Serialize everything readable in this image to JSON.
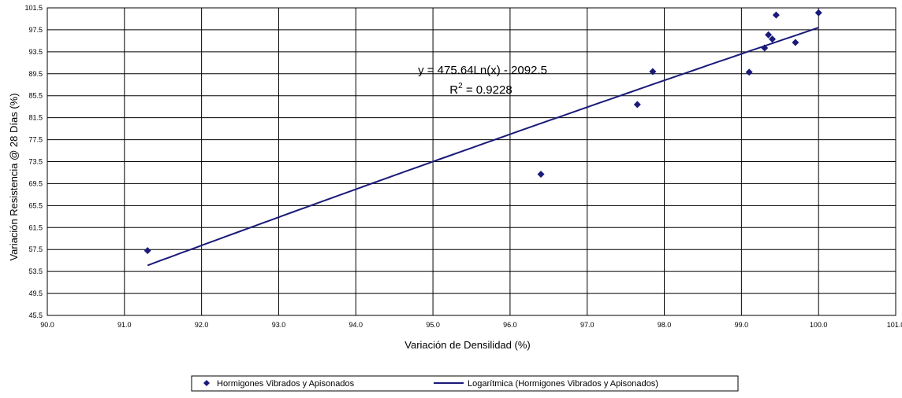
{
  "chart_data": {
    "type": "scatter",
    "title": "",
    "xlabel": "Variación de Densilidad (%)",
    "ylabel": "Variación Resistencia @ 28 Días (%)",
    "xlim": [
      90,
      101
    ],
    "ylim": [
      45.5,
      101.5
    ],
    "x_ticks": [
      "90.0",
      "91.0",
      "92.0",
      "93.0",
      "94.0",
      "95.0",
      "96.0",
      "97.0",
      "98.0",
      "99.0",
      "100.0",
      "101.0"
    ],
    "y_ticks": [
      "101.5",
      "97.5",
      "93.5",
      "89.5",
      "85.5",
      "81.5",
      "77.5",
      "73.5",
      "69.5",
      "65.5",
      "61.5",
      "57.5",
      "53.5",
      "49.5",
      "45.5"
    ],
    "grid": true,
    "series": [
      {
        "name": "Hormigones Vibrados y Apisonados",
        "kind": "scatter",
        "color": "#1a1a7a",
        "points": [
          [
            91.3,
            57.3
          ],
          [
            96.4,
            71.2
          ],
          [
            97.65,
            83.9
          ],
          [
            97.85,
            89.9
          ],
          [
            99.1,
            89.8
          ],
          [
            99.3,
            94.2
          ],
          [
            99.35,
            96.6
          ],
          [
            99.4,
            95.8
          ],
          [
            99.45,
            100.2
          ],
          [
            99.7,
            95.2
          ],
          [
            100.0,
            100.6
          ]
        ]
      },
      {
        "name": "Logarítmica (Hormigones Vibrados y Apisonados)",
        "kind": "trendline",
        "color": "#1a1a7a",
        "equation_a": 475.64,
        "equation_b": -2092.5,
        "x_range": [
          91.3,
          100.0
        ]
      }
    ],
    "annotations": {
      "equation": "y = 475.64Ln(x) - 2092.5",
      "r2_prefix": "R",
      "r2_sup": "2",
      "r2_value": " = 0.9228"
    },
    "legend": {
      "placement": "bottom-center",
      "items": [
        "Hormigones Vibrados y Apisonados",
        "Logarítmica (Hormigones Vibrados y Apisonados)"
      ]
    }
  }
}
